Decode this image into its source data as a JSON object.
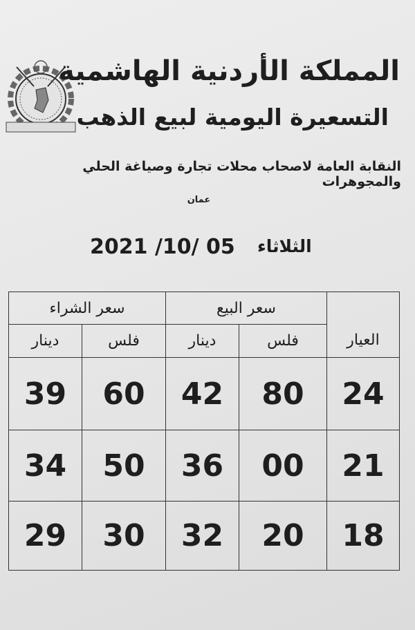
{
  "header": {
    "kingdom": "المملكة الأردنية الهاشمية",
    "title": "التسعيرة اليومية لبيع الذهب",
    "association": "النقابة العامة لاصحاب محلات تجارة وصياغة الحلي والمجوهرات",
    "city": "عمان",
    "day": "الثلاثاء",
    "date": "2021 /10/ 05"
  },
  "logo": {
    "icon": "gear-emblem-icon"
  },
  "table": {
    "karat_header": "العيار",
    "sale_header": "سعر البيع",
    "buy_header": "سعر الشراء",
    "fils": "فلس",
    "dinar": "دينار",
    "rows": [
      {
        "karat": "24",
        "sale_fils": "80",
        "sale_dinar": "42",
        "buy_fils": "60",
        "buy_dinar": "39"
      },
      {
        "karat": "21",
        "sale_fils": "00",
        "sale_dinar": "36",
        "buy_fils": "50",
        "buy_dinar": "34"
      },
      {
        "karat": "18",
        "sale_fils": "20",
        "sale_dinar": "32",
        "buy_fils": "30",
        "buy_dinar": "29"
      }
    ]
  }
}
